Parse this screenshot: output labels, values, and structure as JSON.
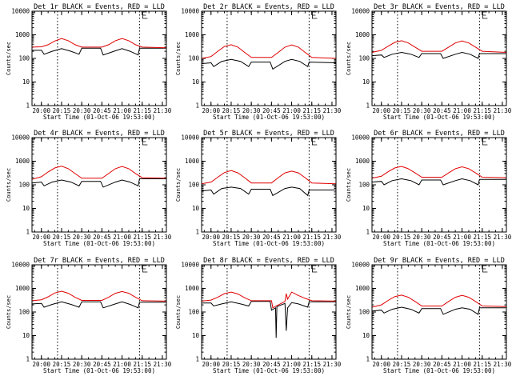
{
  "figure": {
    "series_colors": {
      "events": "#000000",
      "lld": "#e00000"
    },
    "background": "#ffffff"
  },
  "chart_data": [
    {
      "type": "line",
      "title": "Det 1r BLACK = Events, RED = LLD",
      "xlabel": "Start Time (01-Oct-06 19:53:00)",
      "ylabel": "Counts/sec",
      "yscale": "log",
      "ylim": [
        1,
        10000
      ],
      "xlim": [
        "19:53",
        "21:33"
      ],
      "y_ticks": [
        "1",
        "10",
        "100",
        "1000",
        "10000"
      ],
      "x_ticks": [
        "20:00",
        "20:15",
        "20:30",
        "20:45",
        "21:00",
        "21:15",
        "21:30"
      ],
      "vertical_dotted_lines": [
        "20:12",
        "21:13"
      ],
      "series": [
        {
          "name": "Events",
          "color": "#000000",
          "x": [
            "19:53",
            "20:00",
            "20:02",
            "20:08",
            "20:15",
            "20:22",
            "20:28",
            "20:30",
            "20:44",
            "20:46",
            "20:55",
            "21:00",
            "21:06",
            "21:12",
            "21:13",
            "21:33"
          ],
          "y": [
            220,
            220,
            150,
            200,
            260,
            200,
            150,
            270,
            270,
            140,
            210,
            260,
            200,
            140,
            270,
            270
          ]
        },
        {
          "name": "LLD",
          "color": "#e00000",
          "x": [
            "19:53",
            "20:00",
            "20:05",
            "20:10",
            "20:15",
            "20:20",
            "20:25",
            "20:30",
            "20:45",
            "20:50",
            "20:55",
            "21:00",
            "21:05",
            "21:10",
            "21:15",
            "21:33"
          ],
          "y": [
            300,
            310,
            380,
            550,
            700,
            560,
            380,
            300,
            300,
            380,
            560,
            700,
            560,
            380,
            300,
            280
          ]
        }
      ]
    },
    {
      "type": "line",
      "title": "Det 2r BLACK = Events, RED = LLD",
      "xlabel": "Start Time (01-Oct-06 19:53:00)",
      "ylabel": "Counts/sec",
      "yscale": "log",
      "ylim": [
        1,
        10000
      ],
      "xlim": [
        "19:53",
        "21:33"
      ],
      "y_ticks": [
        "1",
        "10",
        "100",
        "1000",
        "10000"
      ],
      "x_ticks": [
        "20:00",
        "20:15",
        "20:30",
        "20:45",
        "21:00",
        "21:15",
        "21:30"
      ],
      "vertical_dotted_lines": [
        "20:12",
        "21:13"
      ],
      "series": [
        {
          "name": "Events",
          "color": "#000000",
          "x": [
            "19:53",
            "20:00",
            "20:02",
            "20:08",
            "20:15",
            "20:22",
            "20:28",
            "20:30",
            "20:44",
            "20:46",
            "20:55",
            "21:00",
            "21:06",
            "21:12",
            "21:13",
            "21:33"
          ],
          "y": [
            60,
            65,
            45,
            75,
            90,
            75,
            45,
            70,
            70,
            35,
            75,
            90,
            75,
            45,
            70,
            65
          ]
        },
        {
          "name": "LLD",
          "color": "#e00000",
          "x": [
            "19:53",
            "20:00",
            "20:05",
            "20:10",
            "20:15",
            "20:20",
            "20:25",
            "20:30",
            "20:45",
            "20:50",
            "20:55",
            "21:00",
            "21:05",
            "21:10",
            "21:15",
            "21:33"
          ],
          "y": [
            100,
            120,
            200,
            320,
            380,
            300,
            180,
            110,
            110,
            180,
            300,
            370,
            300,
            180,
            110,
            100
          ]
        }
      ]
    },
    {
      "type": "line",
      "title": "Det 3r BLACK = Events, RED = LLD",
      "xlabel": "Start Time (01-Oct-06 19:53:00)",
      "ylabel": "Counts/sec",
      "yscale": "log",
      "ylim": [
        1,
        10000
      ],
      "xlim": [
        "19:53",
        "21:33"
      ],
      "y_ticks": [
        "1",
        "10",
        "100",
        "1000",
        "10000"
      ],
      "x_ticks": [
        "20:00",
        "20:15",
        "20:30",
        "20:45",
        "21:00",
        "21:15",
        "21:30"
      ],
      "vertical_dotted_lines": [
        "20:12",
        "21:13"
      ],
      "series": [
        {
          "name": "Events",
          "color": "#000000",
          "x": [
            "19:53",
            "20:00",
            "20:02",
            "20:08",
            "20:15",
            "20:22",
            "20:28",
            "20:30",
            "20:44",
            "20:46",
            "20:55",
            "21:00",
            "21:06",
            "21:12",
            "21:13",
            "21:33"
          ],
          "y": [
            130,
            140,
            110,
            150,
            180,
            150,
            110,
            160,
            160,
            100,
            150,
            180,
            150,
            100,
            160,
            160
          ]
        },
        {
          "name": "LLD",
          "color": "#e00000",
          "x": [
            "19:53",
            "20:00",
            "20:05",
            "20:10",
            "20:15",
            "20:20",
            "20:25",
            "20:30",
            "20:45",
            "20:50",
            "20:55",
            "21:00",
            "21:05",
            "21:10",
            "21:15",
            "21:33"
          ],
          "y": [
            180,
            220,
            330,
            480,
            560,
            450,
            300,
            200,
            200,
            300,
            450,
            550,
            450,
            300,
            200,
            180
          ]
        }
      ]
    },
    {
      "type": "line",
      "title": "Det 4r BLACK = Events, RED = LLD",
      "xlabel": "Start Time (01-Oct-06 19:53:00)",
      "ylabel": "Counts/sec",
      "yscale": "log",
      "ylim": [
        1,
        10000
      ],
      "xlim": [
        "19:53",
        "21:33"
      ],
      "y_ticks": [
        "1",
        "10",
        "100",
        "1000",
        "10000"
      ],
      "x_ticks": [
        "20:00",
        "20:15",
        "20:30",
        "20:45",
        "21:00",
        "21:15",
        "21:30"
      ],
      "vertical_dotted_lines": [
        "20:12",
        "21:13"
      ],
      "series": [
        {
          "name": "Events",
          "color": "#000000",
          "x": [
            "19:53",
            "20:00",
            "20:02",
            "20:08",
            "20:15",
            "20:22",
            "20:28",
            "20:30",
            "20:44",
            "20:46",
            "20:55",
            "21:00",
            "21:06",
            "21:12",
            "21:13",
            "21:33"
          ],
          "y": [
            120,
            130,
            90,
            130,
            160,
            130,
            90,
            140,
            140,
            80,
            130,
            160,
            130,
            90,
            180,
            180
          ]
        },
        {
          "name": "LLD",
          "color": "#e00000",
          "x": [
            "19:53",
            "20:00",
            "20:05",
            "20:10",
            "20:15",
            "20:20",
            "20:25",
            "20:30",
            "20:45",
            "20:50",
            "20:55",
            "21:00",
            "21:05",
            "21:10",
            "21:15",
            "21:33"
          ],
          "y": [
            170,
            220,
            350,
            520,
            620,
            480,
            300,
            190,
            190,
            300,
            480,
            600,
            480,
            300,
            200,
            190
          ]
        }
      ]
    },
    {
      "type": "line",
      "title": "Det 5r BLACK = Events, RED = LLD",
      "xlabel": "Start Time (01-Oct-06 19:53:00)",
      "ylabel": "Counts/sec",
      "yscale": "log",
      "ylim": [
        1,
        10000
      ],
      "xlim": [
        "19:53",
        "21:33"
      ],
      "y_ticks": [
        "1",
        "10",
        "100",
        "1000",
        "10000"
      ],
      "x_ticks": [
        "20:00",
        "20:15",
        "20:30",
        "20:45",
        "21:00",
        "21:15",
        "21:30"
      ],
      "vertical_dotted_lines": [
        "20:12",
        "21:13"
      ],
      "series": [
        {
          "name": "Events",
          "color": "#000000",
          "x": [
            "19:53",
            "20:00",
            "20:02",
            "20:08",
            "20:15",
            "20:22",
            "20:28",
            "20:30",
            "20:44",
            "20:46",
            "20:55",
            "21:00",
            "21:06",
            "21:12",
            "21:13",
            "21:33"
          ],
          "y": [
            55,
            60,
            40,
            70,
            80,
            70,
            40,
            65,
            65,
            35,
            70,
            80,
            70,
            35,
            60,
            60
          ]
        },
        {
          "name": "LLD",
          "color": "#e00000",
          "x": [
            "19:53",
            "20:00",
            "20:05",
            "20:10",
            "20:15",
            "20:20",
            "20:25",
            "20:30",
            "20:45",
            "20:50",
            "20:55",
            "21:00",
            "21:05",
            "21:10",
            "21:15",
            "21:33"
          ],
          "y": [
            110,
            130,
            210,
            330,
            400,
            320,
            200,
            120,
            120,
            200,
            320,
            380,
            320,
            200,
            120,
            110
          ]
        }
      ]
    },
    {
      "type": "line",
      "title": "Det 6r BLACK = Events, RED = LLD",
      "xlabel": "Start Time (01-Oct-06 19:53:00)",
      "ylabel": "Counts/sec",
      "yscale": "log",
      "ylim": [
        1,
        10000
      ],
      "xlim": [
        "19:53",
        "21:33"
      ],
      "y_ticks": [
        "1",
        "10",
        "100",
        "1000",
        "10000"
      ],
      "x_ticks": [
        "20:00",
        "20:15",
        "20:30",
        "20:45",
        "21:00",
        "21:15",
        "21:30"
      ],
      "vertical_dotted_lines": [
        "20:12",
        "21:13"
      ],
      "series": [
        {
          "name": "Events",
          "color": "#000000",
          "x": [
            "19:53",
            "20:00",
            "20:02",
            "20:08",
            "20:15",
            "20:22",
            "20:28",
            "20:30",
            "20:44",
            "20:46",
            "20:55",
            "21:00",
            "21:06",
            "21:12",
            "21:13",
            "21:33"
          ],
          "y": [
            130,
            140,
            100,
            150,
            180,
            150,
            100,
            160,
            160,
            100,
            150,
            180,
            150,
            100,
            170,
            170
          ]
        },
        {
          "name": "LLD",
          "color": "#e00000",
          "x": [
            "19:53",
            "20:00",
            "20:05",
            "20:10",
            "20:15",
            "20:20",
            "20:25",
            "20:30",
            "20:45",
            "20:50",
            "20:55",
            "21:00",
            "21:05",
            "21:10",
            "21:15",
            "21:33"
          ],
          "y": [
            190,
            230,
            360,
            520,
            600,
            480,
            320,
            210,
            210,
            320,
            480,
            580,
            480,
            320,
            210,
            200
          ]
        }
      ]
    },
    {
      "type": "line",
      "title": "Det 7r BLACK = Events, RED = LLD",
      "xlabel": "Start Time (01-Oct-06 19:53:00)",
      "ylabel": "Counts/sec",
      "yscale": "log",
      "ylim": [
        1,
        10000
      ],
      "xlim": [
        "19:53",
        "21:33"
      ],
      "y_ticks": [
        "1",
        "10",
        "100",
        "1000",
        "10000"
      ],
      "x_ticks": [
        "20:00",
        "20:15",
        "20:30",
        "20:45",
        "21:00",
        "21:15",
        "21:30"
      ],
      "vertical_dotted_lines": [
        "20:12",
        "21:13"
      ],
      "series": [
        {
          "name": "Events",
          "color": "#000000",
          "x": [
            "19:53",
            "20:00",
            "20:02",
            "20:08",
            "20:15",
            "20:22",
            "20:28",
            "20:30",
            "20:44",
            "20:46",
            "20:55",
            "21:00",
            "21:06",
            "21:12",
            "21:13",
            "21:33"
          ],
          "y": [
            220,
            230,
            160,
            210,
            270,
            210,
            160,
            270,
            270,
            150,
            220,
            270,
            210,
            150,
            260,
            260
          ]
        },
        {
          "name": "LLD",
          "color": "#e00000",
          "x": [
            "19:53",
            "20:00",
            "20:05",
            "20:10",
            "20:15",
            "20:20",
            "20:25",
            "20:30",
            "20:45",
            "20:50",
            "20:55",
            "21:00",
            "21:05",
            "21:10",
            "21:15",
            "21:33"
          ],
          "y": [
            300,
            330,
            440,
            640,
            760,
            620,
            420,
            310,
            310,
            420,
            620,
            740,
            620,
            420,
            300,
            290
          ]
        }
      ]
    },
    {
      "type": "line",
      "title": "Det 8r BLACK = Events, RED = LLD",
      "xlabel": "Start Time (01-Oct-06 19:53:00)",
      "ylabel": "Counts/sec",
      "yscale": "log",
      "ylim": [
        1,
        10000
      ],
      "xlim": [
        "19:53",
        "21:33"
      ],
      "y_ticks": [
        "1",
        "10",
        "100",
        "1000",
        "10000"
      ],
      "x_ticks": [
        "20:00",
        "20:15",
        "20:30",
        "20:45",
        "21:00",
        "21:15",
        "21:30"
      ],
      "vertical_dotted_lines": [
        "20:12",
        "21:13"
      ],
      "series": [
        {
          "name": "Events",
          "color": "#000000",
          "x": [
            "19:53",
            "20:00",
            "20:02",
            "20:08",
            "20:15",
            "20:22",
            "20:28",
            "20:30",
            "20:44",
            "20:45",
            "20:48",
            "20:48.5",
            "20:49",
            "20:55",
            "20:56",
            "20:57",
            "21:00",
            "21:05",
            "21:12",
            "21:13",
            "21:33"
          ],
          "y": [
            240,
            240,
            180,
            220,
            270,
            220,
            180,
            280,
            280,
            120,
            150,
            8,
            170,
            230,
            16,
            150,
            250,
            220,
            160,
            270,
            270
          ]
        },
        {
          "name": "LLD",
          "color": "#e00000",
          "x": [
            "19:53",
            "20:00",
            "20:05",
            "20:10",
            "20:15",
            "20:20",
            "20:25",
            "20:30",
            "20:45",
            "20:46",
            "20:55",
            "20:56",
            "20:57",
            "21:00",
            "21:05",
            "21:10",
            "21:15",
            "21:33"
          ],
          "y": [
            290,
            320,
            420,
            600,
            700,
            580,
            400,
            300,
            300,
            150,
            280,
            600,
            350,
            700,
            500,
            380,
            300,
            290
          ]
        }
      ]
    },
    {
      "type": "line",
      "title": "Det 9r BLACK = Events, RED = LLD",
      "xlabel": "Start Time (01-Oct-06 19:53:00)",
      "ylabel": "Counts/sec",
      "yscale": "log",
      "ylim": [
        1,
        10000
      ],
      "xlim": [
        "19:53",
        "21:33"
      ],
      "y_ticks": [
        "1",
        "10",
        "100",
        "1000",
        "10000"
      ],
      "x_ticks": [
        "20:00",
        "20:15",
        "20:30",
        "20:45",
        "21:00",
        "21:15",
        "21:30"
      ],
      "vertical_dotted_lines": [
        "20:12",
        "21:13"
      ],
      "series": [
        {
          "name": "Events",
          "color": "#000000",
          "x": [
            "19:53",
            "20:00",
            "20:02",
            "20:08",
            "20:15",
            "20:22",
            "20:28",
            "20:30",
            "20:44",
            "20:46",
            "20:55",
            "21:00",
            "21:06",
            "21:12",
            "21:13",
            "21:33"
          ],
          "y": [
            110,
            120,
            90,
            130,
            160,
            130,
            90,
            140,
            140,
            80,
            130,
            150,
            130,
            80,
            150,
            150
          ]
        },
        {
          "name": "LLD",
          "color": "#e00000",
          "x": [
            "19:53",
            "20:00",
            "20:05",
            "20:10",
            "20:15",
            "20:20",
            "20:25",
            "20:30",
            "20:45",
            "20:50",
            "20:55",
            "21:00",
            "21:05",
            "21:10",
            "21:15",
            "21:33"
          ],
          "y": [
            160,
            200,
            310,
            450,
            520,
            420,
            280,
            180,
            180,
            280,
            420,
            510,
            420,
            280,
            180,
            170
          ]
        }
      ]
    }
  ]
}
